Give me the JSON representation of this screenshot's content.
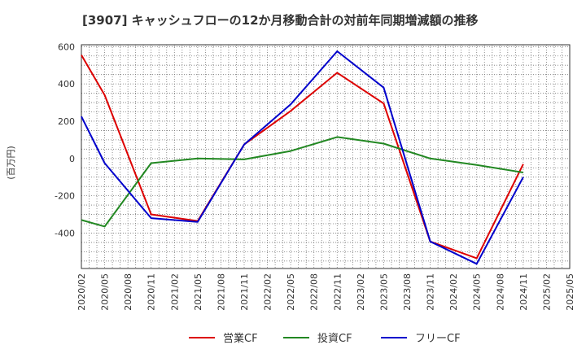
{
  "chart_data": {
    "type": "line",
    "title": "[3907]  キャッシュフローの12か月移動合計の対前年同期増減額の推移",
    "ylabel": "(百万円)",
    "xlabel": "",
    "ylim": [
      -590,
      610
    ],
    "yticks": [
      600,
      400,
      200,
      0,
      -200,
      -400
    ],
    "ytick_labels": [
      "600",
      "400",
      "200",
      "0",
      "-200",
      "-400"
    ],
    "categories": [
      "2020/02",
      "2020/05",
      "2020/08",
      "2020/11",
      "2021/02",
      "2021/05",
      "2021/08",
      "2021/11",
      "2022/02",
      "2022/05",
      "2022/08",
      "2022/11",
      "2023/02",
      "2023/05",
      "2023/08",
      "2023/11",
      "2024/02",
      "2024/05",
      "2024/08",
      "2024/11",
      "2025/02",
      "2025/05"
    ],
    "series": [
      {
        "name": "営業CF",
        "color": "#dd0000",
        "values": [
          555,
          340,
          null,
          -300,
          null,
          -335,
          null,
          75,
          null,
          255,
          null,
          460,
          null,
          295,
          null,
          -445,
          null,
          -535,
          null,
          -30,
          null,
          null
        ]
      },
      {
        "name": "投資CF",
        "color": "#228822",
        "values": [
          -330,
          -365,
          null,
          -25,
          null,
          0,
          null,
          -5,
          null,
          40,
          null,
          115,
          null,
          80,
          null,
          0,
          null,
          -35,
          null,
          -75,
          null,
          null
        ]
      },
      {
        "name": "フリーCF",
        "color": "#0000cc",
        "values": [
          225,
          -25,
          null,
          -320,
          null,
          -340,
          null,
          75,
          null,
          290,
          null,
          575,
          null,
          380,
          null,
          -445,
          null,
          -565,
          null,
          -100,
          null,
          null
        ]
      }
    ],
    "grid": true,
    "legend_position": "bottom"
  }
}
